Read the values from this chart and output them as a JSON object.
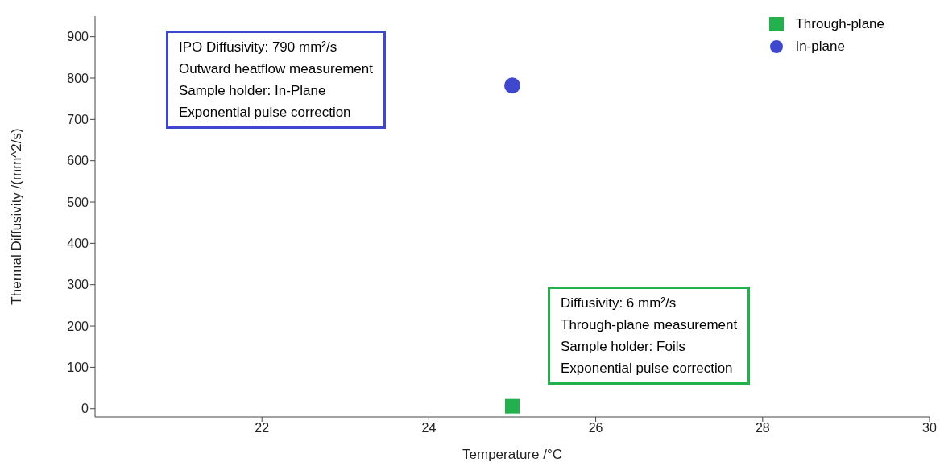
{
  "chart_data": {
    "type": "scatter",
    "xlabel": "Temperature /°C",
    "ylabel": "Thermal Diffusivity /(mm^2/s)",
    "xlim": [
      20,
      30
    ],
    "xticks": [
      22,
      24,
      26,
      28,
      30
    ],
    "ylim": [
      -20,
      950
    ],
    "yticks": [
      0,
      100,
      200,
      300,
      400,
      500,
      600,
      700,
      800,
      900
    ],
    "legend": "top right",
    "series": [
      {
        "name": "Through-plane",
        "color": "#22b14c",
        "marker": "square",
        "x": [
          25
        ],
        "values": [
          6
        ]
      },
      {
        "name": "In-plane",
        "color": "#3f48cc",
        "marker": "circle",
        "x": [
          25
        ],
        "values": [
          782
        ]
      }
    ],
    "annotations": [
      "Diffusivity: 6 mm²/s\nThrough-plane measurement\nSample holder: Foils\nExponential pulse correction",
      "IPO Diffusivity: 790 mm²/s\nOutward heatflow measurement\nSample holder: In-Plane\nExponential pulse correction"
    ]
  }
}
